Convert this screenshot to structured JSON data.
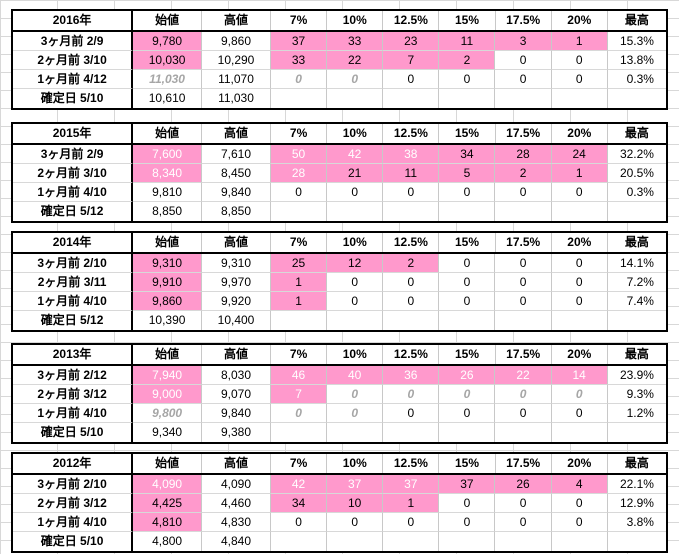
{
  "columns": [
    "始値",
    "高値",
    "7%",
    "10%",
    "12.5%",
    "15%",
    "17.5%",
    "20%",
    "最高"
  ],
  "highlight_color": "#ff99cc",
  "tables": [
    {
      "year": "2016年",
      "rows": [
        {
          "label": "3ヶ月前  2/9",
          "cells": [
            "9,780",
            "9,860",
            "37",
            "33",
            "23",
            "11",
            "3",
            "1",
            "15.3%"
          ],
          "pink": [
            0,
            2,
            3,
            4,
            5,
            6,
            7
          ],
          "white": [],
          "gray": []
        },
        {
          "label": "2ヶ月前  3/10",
          "cells": [
            "10,030",
            "10,290",
            "33",
            "22",
            "7",
            "2",
            "0",
            "0",
            "13.8%"
          ],
          "pink": [
            0,
            2,
            3,
            4,
            5
          ],
          "white": [],
          "gray": []
        },
        {
          "label": "1ヶ月前  4/12",
          "cells": [
            "11,030",
            "11,070",
            "0",
            "0",
            "0",
            "0",
            "0",
            "0",
            "0.3%"
          ],
          "pink": [],
          "white": [],
          "gray": [
            0,
            2,
            3
          ]
        },
        {
          "label": "確定日  5/10",
          "cells": [
            "10,610",
            "11,030",
            "",
            "",
            "",
            "",
            "",
            "",
            ""
          ],
          "pink": [],
          "white": [],
          "gray": []
        }
      ]
    },
    {
      "year": "2015年",
      "rows": [
        {
          "label": "3ヶ月前  2/9",
          "cells": [
            "7,600",
            "7,610",
            "50",
            "42",
            "38",
            "34",
            "28",
            "24",
            "32.2%"
          ],
          "pink": [
            0,
            2,
            3,
            4,
            5,
            6,
            7
          ],
          "white": [
            0,
            2,
            3,
            4
          ],
          "gray": []
        },
        {
          "label": "2ヶ月前  3/10",
          "cells": [
            "8,340",
            "8,450",
            "28",
            "21",
            "11",
            "5",
            "2",
            "1",
            "20.5%"
          ],
          "pink": [
            0,
            2,
            3,
            4,
            5,
            6,
            7
          ],
          "white": [
            0,
            2
          ],
          "gray": []
        },
        {
          "label": "1ヶ月前  4/10",
          "cells": [
            "9,810",
            "9,840",
            "0",
            "0",
            "0",
            "0",
            "0",
            "0",
            "0.3%"
          ],
          "pink": [],
          "white": [],
          "gray": []
        },
        {
          "label": "確定日  5/12",
          "cells": [
            "8,850",
            "8,850",
            "",
            "",
            "",
            "",
            "",
            "",
            ""
          ],
          "pink": [],
          "white": [],
          "gray": []
        }
      ]
    },
    {
      "year": "2014年",
      "rows": [
        {
          "label": "3ヶ月前  2/10",
          "cells": [
            "9,310",
            "9,310",
            "25",
            "12",
            "2",
            "0",
            "0",
            "0",
            "14.1%"
          ],
          "pink": [
            0,
            2,
            3,
            4
          ],
          "white": [],
          "gray": []
        },
        {
          "label": "2ヶ月前  3/11",
          "cells": [
            "9,910",
            "9,970",
            "1",
            "0",
            "0",
            "0",
            "0",
            "0",
            "7.2%"
          ],
          "pink": [
            0,
            2
          ],
          "white": [],
          "gray": []
        },
        {
          "label": "1ヶ月前  4/10",
          "cells": [
            "9,860",
            "9,920",
            "1",
            "0",
            "0",
            "0",
            "0",
            "0",
            "7.4%"
          ],
          "pink": [
            0,
            2
          ],
          "white": [],
          "gray": []
        },
        {
          "label": "確定日  5/12",
          "cells": [
            "10,390",
            "10,400",
            "",
            "",
            "",
            "",
            "",
            "",
            ""
          ],
          "pink": [],
          "white": [],
          "gray": []
        }
      ]
    },
    {
      "year": "2013年",
      "rows": [
        {
          "label": "3ヶ月前  2/12",
          "cells": [
            "7,940",
            "8,030",
            "46",
            "40",
            "36",
            "26",
            "22",
            "14",
            "23.9%"
          ],
          "pink": [
            0,
            2,
            3,
            4,
            5,
            6,
            7
          ],
          "white": [
            0,
            2,
            3,
            4,
            5,
            6,
            7
          ],
          "gray": []
        },
        {
          "label": "2ヶ月前  3/12",
          "cells": [
            "9,000",
            "9,070",
            "7",
            "0",
            "0",
            "0",
            "0",
            "0",
            "9.3%"
          ],
          "pink": [
            0,
            2
          ],
          "white": [
            0,
            2
          ],
          "gray": [
            3,
            4,
            5,
            6,
            7
          ]
        },
        {
          "label": "1ヶ月前  4/10",
          "cells": [
            "9,800",
            "9,840",
            "0",
            "0",
            "0",
            "0",
            "0",
            "0",
            "1.2%"
          ],
          "pink": [],
          "white": [],
          "gray": [
            0,
            2,
            3
          ]
        },
        {
          "label": "確定日  5/10",
          "cells": [
            "9,340",
            "9,380",
            "",
            "",
            "",
            "",
            "",
            "",
            ""
          ],
          "pink": [],
          "white": [],
          "gray": []
        }
      ]
    },
    {
      "year": "2012年",
      "rows": [
        {
          "label": "3ヶ月前  2/10",
          "cells": [
            "4,090",
            "4,090",
            "42",
            "37",
            "37",
            "37",
            "26",
            "4",
            "22.1%"
          ],
          "pink": [
            0,
            2,
            3,
            4,
            5,
            6,
            7
          ],
          "white": [
            0,
            2,
            3,
            4
          ],
          "gray": []
        },
        {
          "label": "2ヶ月前  3/12",
          "cells": [
            "4,425",
            "4,460",
            "34",
            "10",
            "1",
            "0",
            "0",
            "0",
            "12.9%"
          ],
          "pink": [
            0,
            2,
            3,
            4
          ],
          "white": [],
          "gray": []
        },
        {
          "label": "1ヶ月前  4/10",
          "cells": [
            "4,810",
            "4,830",
            "0",
            "0",
            "0",
            "0",
            "0",
            "0",
            "3.8%"
          ],
          "pink": [
            0
          ],
          "white": [],
          "gray": []
        },
        {
          "label": "確定日  5/10",
          "cells": [
            "4,800",
            "4,840",
            "",
            "",
            "",
            "",
            "",
            "",
            ""
          ],
          "pink": [],
          "white": [],
          "gray": []
        }
      ]
    }
  ]
}
